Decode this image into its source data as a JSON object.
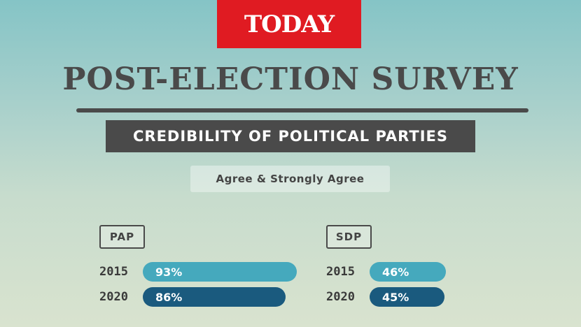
{
  "header": {
    "logo_text": "TODAY"
  },
  "title": "POST-ELECTION SURVEY",
  "subtitle": "CREDIBILITY OF POLITICAL PARTIES",
  "legend": "Agree & Strongly Agree",
  "colors": {
    "logo": "#e01b22",
    "bar_2015": "#45a9bd",
    "bar_2020": "#1a5a7e",
    "text": "#4a4a4a"
  },
  "chart_data": [
    {
      "type": "bar",
      "orientation": "horizontal",
      "title": "PAP",
      "categories": [
        "2015",
        "2020"
      ],
      "values": [
        93,
        86
      ],
      "labels": [
        "93%",
        "86%"
      ]
    },
    {
      "type": "bar",
      "orientation": "horizontal",
      "title": "SDP",
      "categories": [
        "2015",
        "2020"
      ],
      "values": [
        46,
        45
      ],
      "labels": [
        "46%",
        "45%"
      ]
    }
  ]
}
